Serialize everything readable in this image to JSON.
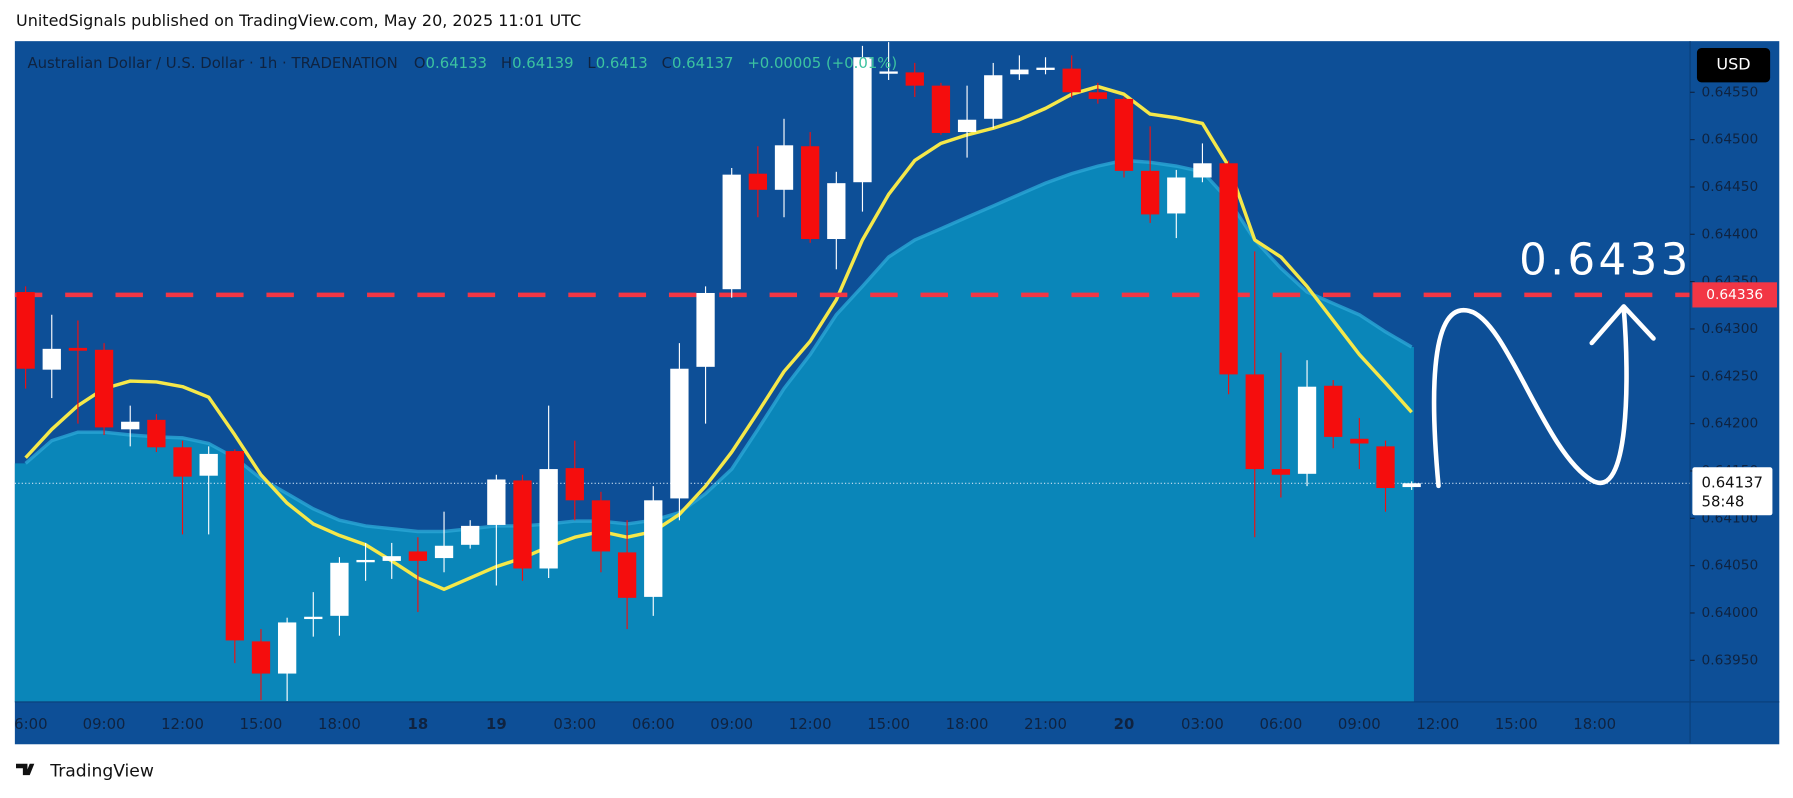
{
  "header": {
    "publisher": "UnitedSignals published on TradingView.com, May 20, 2025 11:01 UTC"
  },
  "footer": {
    "brand": "TradingView"
  },
  "chart_data": {
    "type": "candlestick",
    "title": "Australian Dollar / U.S. Dollar · 1h · TRADENATION",
    "ohlc_labels": [
      "O",
      "H",
      "L",
      "C"
    ],
    "ohlc_values": [
      0.64133,
      0.64139,
      0.6413,
      0.64137
    ],
    "change": "+0.00005 (+0.01%)",
    "currency": "USD",
    "categories": [
      "6:00",
      null,
      null,
      "09:00",
      null,
      null,
      "12:00",
      null,
      null,
      "15:00",
      null,
      null,
      "18:00",
      null,
      null,
      "18",
      null,
      null,
      "19",
      null,
      null,
      "03:00",
      null,
      null,
      "06:00",
      null,
      null,
      "09:00",
      null,
      null,
      "12:00",
      null,
      null,
      "15:00",
      null,
      null,
      "18:00",
      null,
      null,
      "21:00",
      null,
      null,
      "20",
      null,
      null,
      "03:00",
      null,
      null,
      "06:00",
      null,
      null,
      "09:00",
      null,
      null,
      "12:00",
      null,
      null,
      "15:00",
      null,
      null,
      "18:00"
    ],
    "open": [
      0.64339,
      0.64257,
      0.6428,
      0.64278,
      0.64194,
      0.64204,
      0.64175,
      0.64145,
      0.64171,
      0.6397,
      0.63936,
      0.63994,
      0.63997,
      0.64055,
      0.64055,
      0.64065,
      0.64058,
      0.64072,
      0.64093,
      0.6414,
      0.64047,
      0.64153,
      0.64119,
      0.64064,
      0.64017,
      0.64121,
      0.6426,
      0.64342,
      0.64464,
      0.64447,
      0.64493,
      0.64395,
      0.64455,
      0.6457,
      0.64571,
      0.64557,
      0.64508,
      0.64522,
      0.64569,
      0.64574,
      0.64575,
      0.6455,
      0.64543,
      0.64467,
      0.64422,
      0.6446,
      0.64475,
      0.64252,
      0.64152,
      0.64147,
      0.6424,
      0.64184,
      0.64176,
      0.64133,
      null,
      null,
      null,
      null,
      null,
      null,
      null
    ],
    "high": [
      0.64345,
      0.64315,
      0.64309,
      0.64285,
      0.64219,
      0.6421,
      0.64182,
      0.64176,
      0.64173,
      0.63983,
      0.63995,
      0.64022,
      0.64059,
      0.64074,
      0.64074,
      0.6408,
      0.64107,
      0.64098,
      0.64146,
      0.64146,
      0.64219,
      0.64182,
      0.64128,
      0.64098,
      0.64134,
      0.64285,
      0.64345,
      0.6447,
      0.64493,
      0.64522,
      0.64508,
      0.64466,
      0.64599,
      0.64603,
      0.64581,
      0.6456,
      0.64557,
      0.64581,
      0.64589,
      0.64587,
      0.64589,
      0.6456,
      0.64545,
      0.64514,
      0.64468,
      0.64496,
      0.64478,
      0.64382,
      0.64275,
      0.64267,
      0.64246,
      0.64206,
      0.64182,
      0.64139,
      null,
      null,
      null,
      null,
      null,
      null,
      null
    ],
    "low": [
      0.64237,
      0.64227,
      0.642,
      0.64188,
      0.64176,
      0.6417,
      0.64083,
      0.64083,
      0.63947,
      0.63908,
      0.63907,
      0.63975,
      0.63976,
      0.64034,
      0.64036,
      0.64001,
      0.64043,
      0.64068,
      0.64029,
      0.64034,
      0.64037,
      0.64098,
      0.64043,
      0.63983,
      0.63997,
      0.64098,
      0.642,
      0.64333,
      0.64418,
      0.64418,
      0.64391,
      0.64363,
      0.64424,
      0.64563,
      0.64545,
      0.64505,
      0.64481,
      0.64512,
      0.64563,
      0.64569,
      0.64544,
      0.64538,
      0.6446,
      0.64412,
      0.64396,
      0.64455,
      0.64231,
      0.6408,
      0.64122,
      0.64134,
      0.64174,
      0.64152,
      0.64107,
      0.6413,
      null,
      null,
      null,
      null,
      null,
      null,
      null
    ],
    "close": [
      0.64258,
      0.64279,
      0.64277,
      0.64196,
      0.64202,
      0.64175,
      0.64144,
      0.64168,
      0.63971,
      0.63936,
      0.6399,
      0.63996,
      0.64053,
      0.64056,
      0.6406,
      0.64055,
      0.64071,
      0.64092,
      0.64141,
      0.64047,
      0.64152,
      0.64119,
      0.64065,
      0.64016,
      0.64119,
      0.64258,
      0.64338,
      0.64463,
      0.64447,
      0.64494,
      0.64395,
      0.64454,
      0.64587,
      0.64572,
      0.64557,
      0.64507,
      0.64521,
      0.64568,
      0.64574,
      0.64576,
      0.6455,
      0.64543,
      0.64467,
      0.64421,
      0.6446,
      0.64475,
      0.64252,
      0.64152,
      0.64146,
      0.64239,
      0.64186,
      0.64179,
      0.64132,
      0.64137,
      null,
      null,
      null,
      null,
      null,
      null,
      null
    ],
    "up_color": "#ffffff",
    "down_color": "#f50d0d",
    "lines": [
      {
        "type": "area",
        "color": "#0a86b9",
        "edge_color": "#2aa6d6",
        "values": [
          0.64158,
          0.64182,
          0.64191,
          0.64191,
          0.64188,
          0.64186,
          0.64185,
          0.64179,
          0.64164,
          0.64142,
          0.64126,
          0.6411,
          0.64098,
          0.64092,
          0.64089,
          0.64086,
          0.64086,
          0.64089,
          0.64092,
          0.64092,
          0.64094,
          0.64097,
          0.64097,
          0.64094,
          0.64098,
          0.64106,
          0.64126,
          0.64152,
          0.64194,
          0.64237,
          0.64273,
          0.64315,
          0.64345,
          0.64376,
          0.64394,
          0.64406,
          0.64418,
          0.6443,
          0.64442,
          0.64454,
          0.64464,
          0.64472,
          0.64478,
          0.64476,
          0.64472,
          0.64466,
          0.64436,
          0.64394,
          0.64364,
          0.64339,
          0.64327,
          0.64315,
          0.64297,
          0.64281,
          null,
          null,
          null,
          null,
          null,
          null,
          null
        ]
      },
      {
        "type": "line",
        "color": "#f5e84a",
        "values": [
          0.64164,
          0.64194,
          0.64219,
          0.64237,
          0.64245,
          0.64244,
          0.64239,
          0.64228,
          0.64188,
          0.64146,
          0.64116,
          0.64094,
          0.64082,
          0.64072,
          0.64055,
          0.64037,
          0.64025,
          0.64037,
          0.64049,
          0.64058,
          0.6407,
          0.6408,
          0.64086,
          0.6408,
          0.64086,
          0.64104,
          0.64134,
          0.6417,
          0.64212,
          0.64255,
          0.64287,
          0.64331,
          0.64394,
          0.64442,
          0.64478,
          0.64496,
          0.64505,
          0.64512,
          0.64521,
          0.64533,
          0.64548,
          0.64556,
          0.64548,
          0.64527,
          0.64523,
          0.64517,
          0.64472,
          0.64394,
          0.64376,
          0.64345,
          0.64309,
          0.64273,
          0.64243,
          0.64212,
          null,
          null,
          null,
          null,
          null,
          null,
          null
        ]
      }
    ],
    "ylim": [
      0.63906,
      0.64604
    ],
    "yticks": [
      {
        "value": 0.6395,
        "label": "0.63950"
      },
      {
        "value": 0.64,
        "label": "0.64000"
      },
      {
        "value": 0.6405,
        "label": "0.64050"
      },
      {
        "value": 0.641,
        "label": "0.64100"
      },
      {
        "value": 0.6415,
        "label": "0.64150"
      },
      {
        "value": 0.642,
        "label": "0.64200"
      },
      {
        "value": 0.6425,
        "label": "0.64250"
      },
      {
        "value": 0.643,
        "label": "0.64300"
      },
      {
        "value": 0.6435,
        "label": "0.64350"
      },
      {
        "value": 0.644,
        "label": "0.64400"
      },
      {
        "value": 0.6445,
        "label": "0.64450"
      },
      {
        "value": 0.645,
        "label": "0.64500"
      },
      {
        "value": 0.6455,
        "label": "0.64550"
      }
    ],
    "level": {
      "value": 0.64336,
      "color": "#f23645"
    },
    "annotation": 0.6433,
    "last_price": {
      "value": 0.64137,
      "countdown": "58:48"
    }
  }
}
